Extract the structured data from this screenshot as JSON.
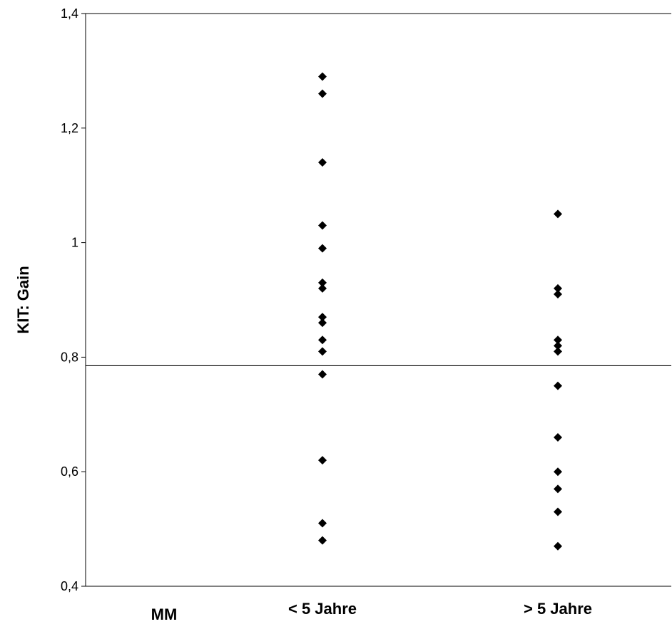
{
  "chart_data": {
    "type": "scatter",
    "title": "",
    "xlabel": "",
    "ylabel": "KIT: Gain",
    "ylim": [
      0.4,
      1.4
    ],
    "yticks": [
      {
        "value": 0.4,
        "label": "0,4"
      },
      {
        "value": 0.6,
        "label": "0,6"
      },
      {
        "value": 0.8,
        "label": "0,8"
      },
      {
        "value": 1.0,
        "label": "1"
      },
      {
        "value": 1.2,
        "label": "1,2"
      },
      {
        "value": 1.4,
        "label": "1,4"
      }
    ],
    "categories": [
      "MM",
      "< 5 Jahre",
      "> 5 Jahre"
    ],
    "reference_line": 0.785,
    "grid": false,
    "legend": "none",
    "marker_color": "#000000",
    "series": [
      {
        "category": "MM",
        "values": []
      },
      {
        "category": "< 5 Jahre",
        "values": [
          1.29,
          1.26,
          1.14,
          1.03,
          0.99,
          0.93,
          0.92,
          0.87,
          0.86,
          0.83,
          0.81,
          0.77,
          0.62,
          0.51,
          0.48
        ]
      },
      {
        "category": "> 5 Jahre",
        "values": [
          1.05,
          0.92,
          0.91,
          0.83,
          0.82,
          0.81,
          0.75,
          0.66,
          0.6,
          0.57,
          0.53,
          0.47
        ]
      }
    ]
  }
}
